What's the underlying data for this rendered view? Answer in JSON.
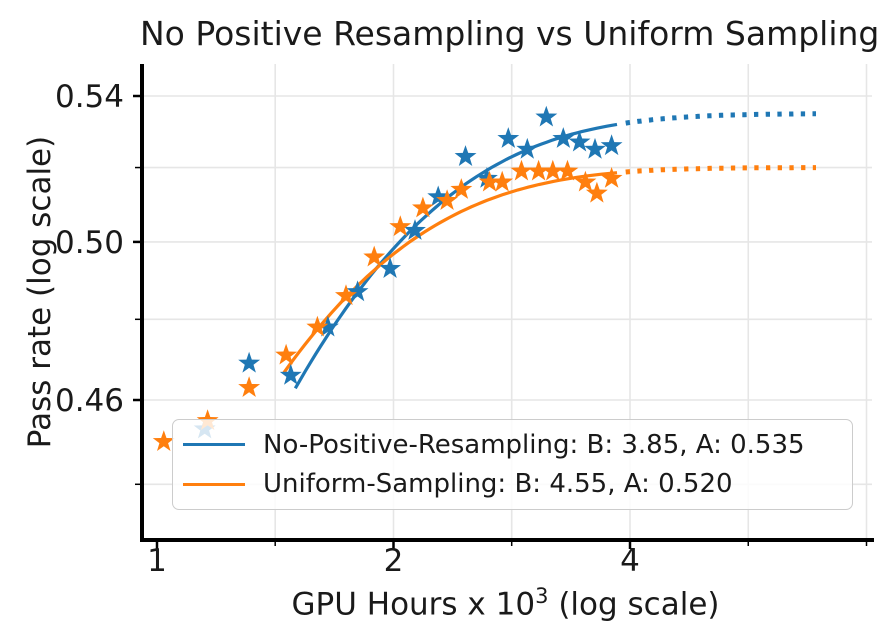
{
  "title": "No Positive Resampling vs Uniform Sampling",
  "axes": {
    "ylabel": "Pass rate (log scale)",
    "xlabel": {
      "prefix": "GPU Hours x 10",
      "sup": "3",
      "suffix": " (log scale)"
    },
    "x_scale": "log",
    "y_scale": "log",
    "x_ticks": [
      {
        "label": "1",
        "value": 1
      },
      {
        "label": "2",
        "value": 2
      },
      {
        "label": "4",
        "value": 4
      }
    ],
    "x_minor_ticks": [
      1.414,
      2.828,
      5.657,
      8
    ],
    "y_ticks": [
      {
        "label": "0.54",
        "value": 0.54
      },
      {
        "label": "0.50",
        "value": 0.5
      },
      {
        "label": "0.46",
        "value": 0.46
      }
    ],
    "y_minor_ticks": [
      0.52,
      0.48,
      0.44
    ],
    "x_gridlines": [
      1.414,
      2,
      2.828,
      4,
      5.657,
      8
    ],
    "y_gridlines": [
      0.44,
      0.46,
      0.48,
      0.5,
      0.52,
      0.54
    ],
    "xlim": [
      0.95,
      8.2
    ],
    "ylim": [
      0.427,
      0.55
    ],
    "grid_color": "#e6e6e6",
    "spine_color": "#000000"
  },
  "chart_data": {
    "type": "scatter",
    "title": "No Positive Resampling vs Uniform Sampling",
    "xlabel": "GPU Hours x 10^3 (log scale)",
    "ylabel": "Pass rate (log scale)",
    "x_scale": "log",
    "y_scale": "log",
    "legend_position": "lower left",
    "series": [
      {
        "name": "No-Positive-Resampling: B: 3.85, A: 0.535",
        "color": "#1f77b4",
        "marker": "star",
        "points": [
          [
            1.15,
            0.453
          ],
          [
            1.31,
            0.469
          ],
          [
            1.48,
            0.466
          ],
          [
            1.65,
            0.478
          ],
          [
            1.8,
            0.487
          ],
          [
            1.98,
            0.493
          ],
          [
            2.13,
            0.503
          ],
          [
            2.28,
            0.512
          ],
          [
            2.47,
            0.523
          ],
          [
            2.63,
            0.517
          ],
          [
            2.8,
            0.528
          ],
          [
            2.96,
            0.525
          ],
          [
            3.13,
            0.534
          ],
          [
            3.29,
            0.528
          ],
          [
            3.45,
            0.527
          ],
          [
            3.61,
            0.525
          ],
          [
            3.79,
            0.526
          ]
        ],
        "fit": {
          "A": 0.535,
          "B": 3.85,
          "C": 0.545,
          "formula": "y = A - C * B^(-x)",
          "solid_x": [
            1.5,
            3.85
          ],
          "dotted_x": [
            3.95,
            6.9
          ]
        }
      },
      {
        "name": "Uniform-Sampling: B: 4.55, A: 0.520",
        "color": "#ff7f0e",
        "marker": "star",
        "points": [
          [
            1.02,
            0.45
          ],
          [
            1.16,
            0.455
          ],
          [
            1.31,
            0.463
          ],
          [
            1.46,
            0.471
          ],
          [
            1.6,
            0.478
          ],
          [
            1.74,
            0.486
          ],
          [
            1.89,
            0.496
          ],
          [
            2.04,
            0.504
          ],
          [
            2.18,
            0.509
          ],
          [
            2.34,
            0.511
          ],
          [
            2.44,
            0.514
          ],
          [
            2.65,
            0.516
          ],
          [
            2.75,
            0.516
          ],
          [
            2.91,
            0.519
          ],
          [
            3.06,
            0.519
          ],
          [
            3.19,
            0.519
          ],
          [
            3.33,
            0.519
          ],
          [
            3.51,
            0.516
          ],
          [
            3.63,
            0.513
          ],
          [
            3.79,
            0.517
          ]
        ],
        "fit": {
          "A": 0.52,
          "B": 4.55,
          "C": 0.48,
          "formula": "y = A - C * B^(-x)",
          "solid_x": [
            1.45,
            3.85
          ],
          "dotted_x": [
            3.95,
            6.9
          ]
        }
      }
    ]
  },
  "legend": {
    "entries": [
      {
        "label": "No-Positive-Resampling: B: 3.85, A: 0.535",
        "color": "#1f77b4"
      },
      {
        "label": "Uniform-Sampling: B: 4.55, A: 0.520",
        "color": "#ff7f0e"
      }
    ]
  }
}
